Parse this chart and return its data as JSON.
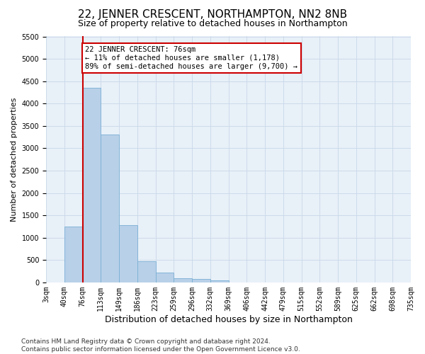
{
  "title": "22, JENNER CRESCENT, NORTHAMPTON, NN2 8NB",
  "subtitle": "Size of property relative to detached houses in Northampton",
  "xlabel": "Distribution of detached houses by size in Northampton",
  "ylabel": "Number of detached properties",
  "footer_line1": "Contains HM Land Registry data © Crown copyright and database right 2024.",
  "footer_line2": "Contains public sector information licensed under the Open Government Licence v3.0.",
  "bar_heights": [
    0,
    1250,
    4350,
    3300,
    1275,
    475,
    225,
    100,
    75,
    50,
    0,
    0,
    0,
    0,
    0,
    0,
    0,
    0,
    0,
    0
  ],
  "bar_color": "#b8d0e8",
  "bar_edgecolor": "#7aafd4",
  "tick_labels": [
    "3sqm",
    "40sqm",
    "76sqm",
    "113sqm",
    "149sqm",
    "186sqm",
    "223sqm",
    "259sqm",
    "296sqm",
    "332sqm",
    "369sqm",
    "406sqm",
    "442sqm",
    "479sqm",
    "515sqm",
    "552sqm",
    "589sqm",
    "625sqm",
    "662sqm",
    "698sqm",
    "735sqm"
  ],
  "property_bin": 2,
  "property_line_color": "#cc0000",
  "annotation_text": "22 JENNER CRESCENT: 76sqm\n← 11% of detached houses are smaller (1,178)\n89% of semi-detached houses are larger (9,700) →",
  "annotation_box_color": "#ffffff",
  "annotation_box_edgecolor": "#cc0000",
  "ylim": [
    0,
    5500
  ],
  "yticks": [
    0,
    500,
    1000,
    1500,
    2000,
    2500,
    3000,
    3500,
    4000,
    4500,
    5000,
    5500
  ],
  "grid_color": "#c8d8e8",
  "background_color": "#e8f0f8",
  "title_fontsize": 11,
  "subtitle_fontsize": 9,
  "xlabel_fontsize": 9,
  "ylabel_fontsize": 8,
  "tick_fontsize": 7,
  "annotation_fontsize": 7.5,
  "footer_fontsize": 6.5
}
